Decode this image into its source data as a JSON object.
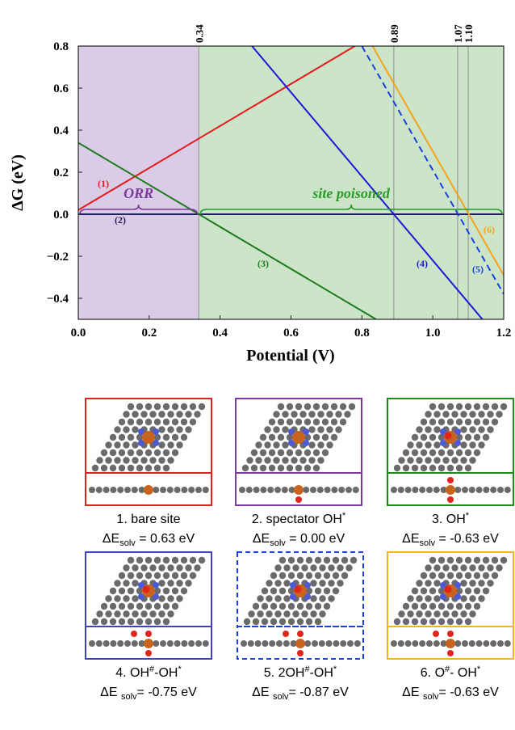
{
  "chart_data": {
    "type": "line",
    "ylabel": "ΔG (eV)",
    "xlabel": "Potential (V)",
    "xlim": [
      0,
      1.2
    ],
    "ylim": [
      -0.5,
      0.8
    ],
    "xticks": [
      {
        "value": 0,
        "label": "0.0"
      },
      0.2,
      0.4,
      0.6,
      0.8,
      {
        "value": 1,
        "label": "1.0"
      },
      1.2
    ],
    "yticks": [
      {
        "value": -0.4,
        "label": "−0.4"
      },
      {
        "value": -0.2,
        "label": "−0.2"
      },
      {
        "value": 0,
        "label": "0.0"
      },
      0.2,
      0.4,
      0.6,
      0.8
    ],
    "markers": [
      0.34,
      0.89,
      1.07,
      {
        "value": 1.1,
        "label": "1.10"
      }
    ],
    "regions": [
      {
        "label": "ORR",
        "x": [
          0,
          0.34
        ],
        "color": "#dacbe6",
        "text_color": "#7a3a9e"
      },
      {
        "label": "site poisoned",
        "x": [
          0.34,
          1.2
        ],
        "color": "#cce5c9",
        "text_color": "#2a9a2a"
      }
    ],
    "series": [
      {
        "name": "(1)",
        "color": "#e8191c",
        "x": [
          0,
          0.78
        ],
        "values": [
          0.02,
          0.8
        ]
      },
      {
        "name": "(2)",
        "color": "#24205e",
        "x": [
          0,
          1.2
        ],
        "values": [
          0,
          0
        ]
      },
      {
        "name": "(3)",
        "color": "#1e7b1e",
        "x": [
          0,
          0.84
        ],
        "values": [
          0.34,
          -0.5
        ]
      },
      {
        "name": "(4)",
        "color": "#1a1ad6",
        "x": [
          0.49,
          1.14
        ],
        "values": [
          0.8,
          -0.5
        ]
      },
      {
        "name": "(5)",
        "color": "#1a3ee0",
        "dash": true,
        "x": [
          0.8,
          1.2
        ],
        "values": [
          0.8,
          -0.38
        ]
      },
      {
        "name": "(6)",
        "color": "#f5a31a",
        "x": [
          0.83,
          1.2
        ],
        "values": [
          0.8,
          -0.29
        ]
      }
    ]
  },
  "panels": [
    {
      "border": "#e02020",
      "dashed": false,
      "title": [
        {
          "t": "1. bare site"
        }
      ],
      "energy": [
        {
          "t": "ΔE"
        },
        {
          "sub": "solv"
        },
        {
          "t": " = 0.63 eV"
        }
      ]
    },
    {
      "border": "#7a3a9e",
      "dashed": false,
      "title": [
        {
          "t": "2. spectator OH"
        },
        {
          "sup": "*"
        }
      ],
      "energy": [
        {
          "t": "ΔE"
        },
        {
          "sub": "solv"
        },
        {
          "t": " = 0.00 eV"
        }
      ]
    },
    {
      "border": "#1e8a1e",
      "dashed": false,
      "title": [
        {
          "t": "3. OH"
        },
        {
          "sup": "*"
        }
      ],
      "energy": [
        {
          "t": "ΔE"
        },
        {
          "sub": "solv"
        },
        {
          "t": " = -0.63 eV"
        }
      ]
    },
    {
      "border": "#4040c8",
      "dashed": false,
      "title": [
        {
          "t": "4. OH"
        },
        {
          "sup": "#"
        },
        {
          "t": "-OH"
        },
        {
          "sup": "*"
        }
      ],
      "energy": [
        {
          "t": "ΔE "
        },
        {
          "sub": "solv"
        },
        {
          "t": "= -0.75 eV"
        }
      ]
    },
    {
      "border": "#1a3ee0",
      "dashed": true,
      "title": [
        {
          "t": "5. 2OH"
        },
        {
          "sup": "#"
        },
        {
          "t": "-OH"
        },
        {
          "sup": "*"
        }
      ],
      "energy": [
        {
          "t": "ΔE "
        },
        {
          "sub": "solv"
        },
        {
          "t": "= -0.87 eV"
        }
      ]
    },
    {
      "border": "#f5b31a",
      "dashed": false,
      "title": [
        {
          "t": "6. O"
        },
        {
          "sup": "#"
        },
        {
          "t": "- OH"
        },
        {
          "sup": "*"
        }
      ],
      "energy": [
        {
          "t": "ΔE "
        },
        {
          "sub": "solv"
        },
        {
          "t": "= -0.63 eV"
        }
      ]
    }
  ]
}
